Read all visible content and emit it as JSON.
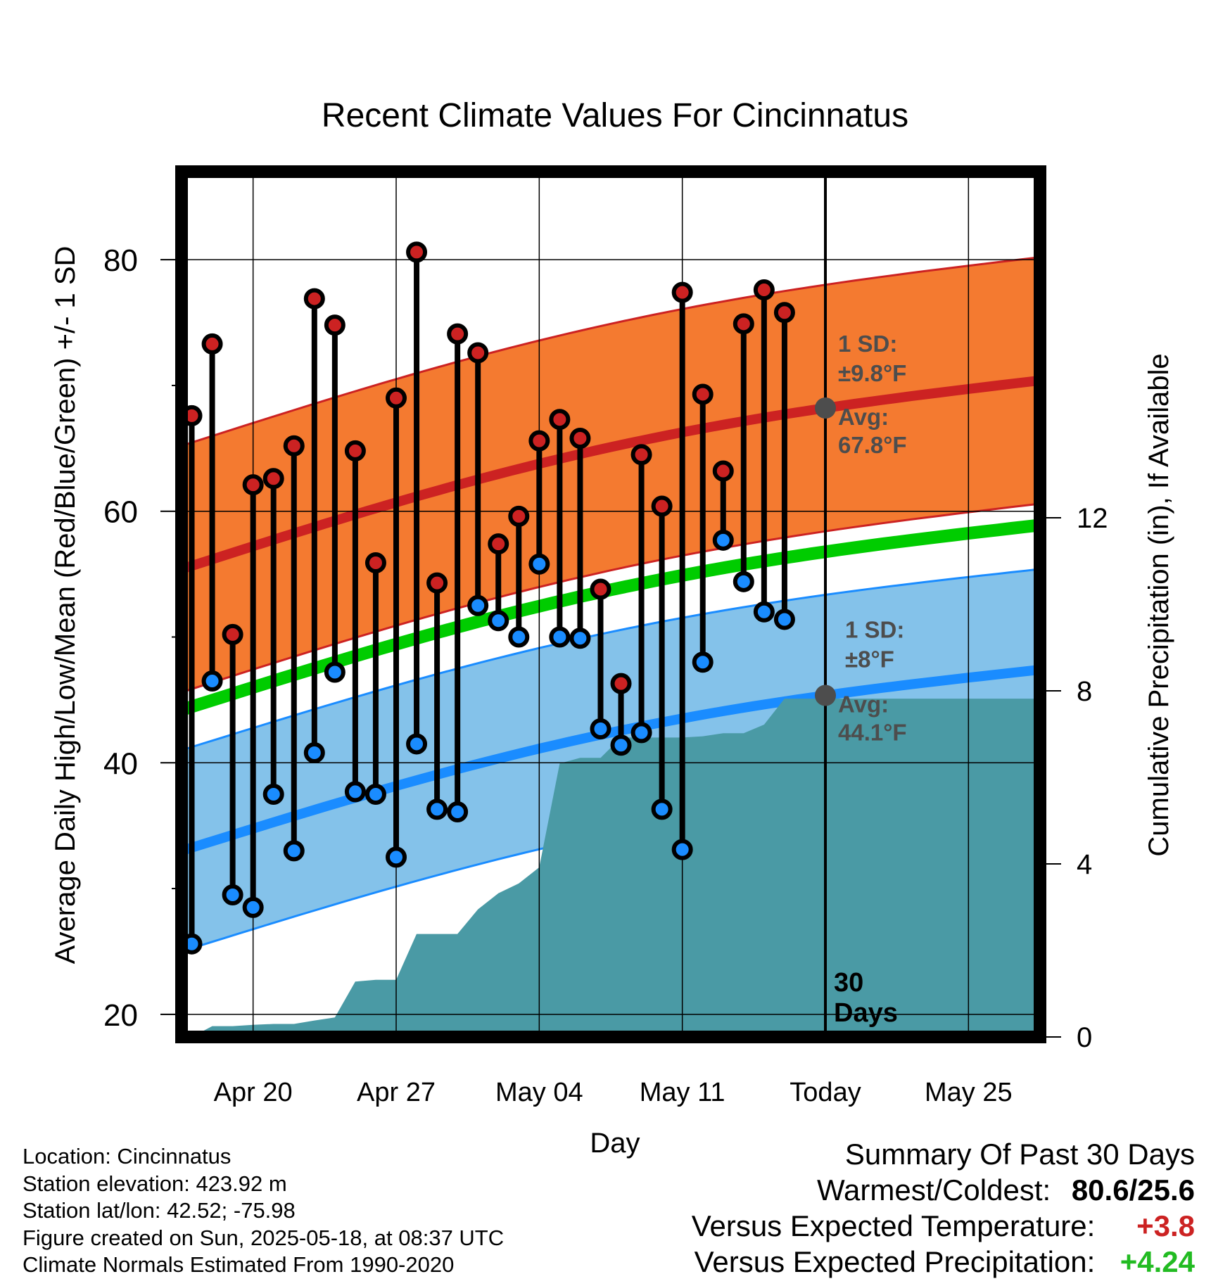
{
  "chart_data": {
    "type": "line",
    "title": "Recent Climate Values For Cincinnatus",
    "xlabel": "Day",
    "ylabel": "Average Daily High/Low/Mean (Red/Blue/Green) +/- 1 SD",
    "y2label": "Cumulative Precipitation (in), If Available",
    "xlim": [
      -0.5,
      41.5
    ],
    "ylim": [
      18.2,
      87
    ],
    "y2lim": [
      0,
      20
    ],
    "x_ticks": [
      {
        "x": 3,
        "label": "Apr 20"
      },
      {
        "x": 10,
        "label": "Apr 27"
      },
      {
        "x": 17,
        "label": "May 04"
      },
      {
        "x": 24,
        "label": "May 11"
      },
      {
        "x": 31,
        "label": "Today"
      },
      {
        "x": 38,
        "label": "May 25"
      }
    ],
    "y_ticks": [
      20,
      40,
      60,
      80
    ],
    "y_minor_ticks": [
      30,
      50,
      70
    ],
    "y2_ticks": [
      0,
      4,
      8,
      12
    ],
    "grid": true,
    "today_x": 31,
    "today_label": [
      "30",
      "Days"
    ],
    "x_start_date": "Apr 17",
    "observed": {
      "x": [
        0,
        1,
        2,
        3,
        4,
        5,
        6,
        7,
        8,
        9,
        10,
        11,
        12,
        13,
        14,
        15,
        16,
        17,
        18,
        19,
        20,
        21,
        22,
        23,
        24,
        25,
        26,
        27,
        28,
        29
      ],
      "high": [
        67.6,
        73.3,
        50.2,
        62.1,
        62.6,
        65.2,
        76.9,
        74.8,
        64.8,
        55.9,
        69.0,
        80.6,
        54.3,
        74.1,
        72.6,
        57.4,
        59.6,
        65.6,
        67.3,
        65.8,
        53.8,
        46.3,
        64.5,
        60.4,
        77.4,
        69.3,
        63.2,
        74.9,
        77.6,
        75.8
      ],
      "low": [
        25.6,
        46.5,
        29.5,
        28.5,
        37.5,
        33.0,
        40.8,
        47.2,
        37.7,
        37.5,
        32.5,
        41.5,
        36.3,
        36.1,
        52.5,
        51.3,
        50.0,
        55.8,
        50.0,
        49.9,
        42.7,
        41.4,
        42.4,
        36.3,
        33.1,
        48.0,
        57.7,
        54.4,
        52.0,
        51.4
      ]
    },
    "normals": {
      "x": [
        -0.5,
        41.5
      ],
      "high": [
        55.4,
        70.4
      ],
      "low": [
        33.0,
        47.4
      ],
      "mean": [
        44.2,
        58.9
      ],
      "high_sd": 9.8,
      "low_sd": 8
    },
    "precipitation": {
      "x": [
        0,
        1,
        2,
        3,
        4,
        5,
        6,
        7,
        8,
        9,
        10,
        11,
        12,
        13,
        14,
        15,
        16,
        17,
        18,
        19,
        20,
        21,
        22,
        23,
        24,
        25,
        26,
        27,
        28,
        29,
        30,
        41.5
      ],
      "cum": [
        0.0,
        0.25,
        0.25,
        0.28,
        0.3,
        0.3,
        0.38,
        0.45,
        1.28,
        1.32,
        1.32,
        2.38,
        2.38,
        2.38,
        2.95,
        3.32,
        3.55,
        3.92,
        6.32,
        6.45,
        6.45,
        6.92,
        6.92,
        6.92,
        6.92,
        6.95,
        7.02,
        7.02,
        7.22,
        7.82,
        7.82,
        7.82
      ]
    },
    "annotations": {
      "high_sd": [
        "1 SD:",
        "±9.8°F"
      ],
      "high_avg": [
        "Avg:",
        "67.8°F"
      ],
      "low_sd": [
        "1 SD:",
        "±8°F"
      ],
      "low_avg": [
        "Avg:",
        "44.1°F"
      ],
      "high_avg_value": 67.8,
      "low_avg_value": 44.1
    },
    "colors": {
      "high": "#cc2222",
      "high_band": "#f47a30",
      "low": "#1a8cff",
      "low_band": "#84c2ea",
      "mean": "#00cc00",
      "precip": "#4a9aa5",
      "annotation": "#4d4d4d"
    }
  },
  "station": {
    "location": "Location: Cincinnatus",
    "elevation": "Station elevation: 423.92 m",
    "latlon": "Station lat/lon: 42.52; -75.98",
    "created": "Figure created on Sun, 2025-05-18, at 08:37 UTC",
    "normals_period": "Climate Normals Estimated From 1990-2020"
  },
  "summary": {
    "heading": "Summary Of Past 30 Days",
    "warmest_label": "Warmest/Coldest:",
    "warmest_value": "80.6/25.6",
    "temp_label": "Versus Expected Temperature:",
    "temp_value": "+3.8",
    "temp_color": "#cc2222",
    "precip_label": "Versus Expected Precipitation:",
    "precip_value": "+4.24",
    "precip_color": "#22bb22"
  }
}
